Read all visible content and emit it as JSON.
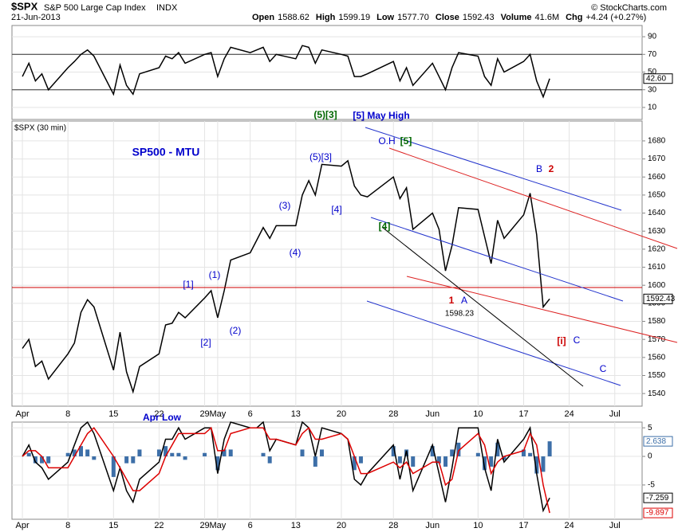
{
  "header": {
    "symbol": "$SPX",
    "name": "S&P 500 Large Cap Index",
    "exchange": "INDX",
    "date": "21-Jun-2013",
    "quote": [
      {
        "label": "Open",
        "value": "1588.62"
      },
      {
        "label": "High",
        "value": "1599.19"
      },
      {
        "label": "Low",
        "value": "1577.70"
      },
      {
        "label": "Close",
        "value": "1592.43"
      },
      {
        "label": "Volume",
        "value": "41.6M"
      },
      {
        "label": "Chg",
        "value": "+4.24 (+0.27%)"
      }
    ],
    "credit": "© StockCharts.com"
  },
  "chart_data": [
    {
      "type": "line",
      "x": [
        0,
        1,
        2,
        3,
        4,
        7,
        8,
        9,
        10,
        11,
        14,
        15,
        16,
        17,
        18,
        21,
        22,
        23,
        24,
        25,
        28,
        29,
        30,
        31,
        32,
        35,
        36,
        37,
        38,
        39,
        42,
        43,
        44,
        45,
        46,
        49,
        50,
        51,
        52,
        53,
        57,
        58,
        59,
        60,
        63,
        64,
        65,
        66,
        67,
        70,
        71,
        72,
        73,
        74,
        77,
        78,
        79,
        80,
        81
      ],
      "xlim": [
        -1.6,
        95.2
      ],
      "ylim": [
        -3.6,
        102.7
      ],
      "yticks": [
        10,
        30,
        50,
        70,
        90
      ],
      "levels": [
        30,
        70
      ],
      "grid": true,
      "series": [
        {
          "color": "#000000",
          "end_label": "42.60",
          "values": [
            45,
            60,
            40,
            48,
            30,
            55,
            62,
            70,
            75,
            68,
            25,
            58,
            35,
            25,
            48,
            55,
            68,
            65,
            72,
            60,
            70,
            72,
            45,
            65,
            78,
            72,
            75,
            78,
            62,
            70,
            65,
            80,
            78,
            60,
            75,
            70,
            68,
            45,
            45,
            48,
            62,
            40,
            55,
            35,
            60,
            45,
            30,
            55,
            72,
            68,
            45,
            35,
            65,
            50,
            62,
            70,
            40,
            22,
            42.6
          ]
        }
      ]
    },
    {
      "type": "line",
      "label": "$SPX (30 min)",
      "x": [
        0,
        1,
        2,
        3,
        4,
        7,
        8,
        9,
        10,
        11,
        14,
        15,
        16,
        17,
        18,
        21,
        22,
        23,
        24,
        25,
        28,
        29,
        30,
        31,
        32,
        35,
        36,
        37,
        38,
        39,
        42,
        43,
        44,
        45,
        46,
        49,
        50,
        51,
        52,
        53,
        57,
        58,
        59,
        60,
        63,
        64,
        65,
        66,
        67,
        70,
        71,
        72,
        73,
        74,
        77,
        78,
        79,
        80,
        81
      ],
      "xlim": [
        -1.6,
        95.2
      ],
      "ylim": [
        1533,
        1691
      ],
      "yticks": [
        1540,
        1550,
        1560,
        1570,
        1580,
        1590,
        1600,
        1610,
        1620,
        1630,
        1640,
        1650,
        1660,
        1670,
        1680
      ],
      "xticks": [
        {
          "value": 0,
          "label": "Apr"
        },
        {
          "value": 7,
          "label": "8"
        },
        {
          "value": 14,
          "label": "15"
        },
        {
          "value": 21,
          "label": "22"
        },
        {
          "value": 28,
          "label": "29"
        },
        {
          "value": 30,
          "label": "May"
        },
        {
          "value": 35,
          "label": "6"
        },
        {
          "value": 42,
          "label": "13"
        },
        {
          "value": 49,
          "label": "20"
        },
        {
          "value": 57,
          "label": "28"
        },
        {
          "value": 63,
          "label": "Jun"
        },
        {
          "value": 70,
          "label": "10"
        },
        {
          "value": 77,
          "label": "17"
        },
        {
          "value": 84,
          "label": "24"
        },
        {
          "value": 91,
          "label": "Jul"
        }
      ],
      "grid": true,
      "series": [
        {
          "color": "#000000",
          "end_label": "1592.43",
          "values": [
            1565,
            1570,
            1555,
            1558,
            1548,
            1562,
            1568,
            1585,
            1592,
            1588,
            1553,
            1574,
            1552,
            1541,
            1555,
            1562,
            1578,
            1579,
            1585,
            1582,
            1593,
            1597,
            1582,
            1597,
            1614,
            1618,
            1625,
            1632,
            1626,
            1633,
            1633,
            1650,
            1658,
            1650,
            1667,
            1666,
            1669,
            1655,
            1650,
            1649,
            1660,
            1648,
            1654,
            1631,
            1640,
            1631,
            1608,
            1622,
            1643,
            1642,
            1627,
            1612,
            1636,
            1626,
            1639,
            1651,
            1628,
            1588,
            1592.43
          ]
        }
      ],
      "annotations": [
        {
          "text": "SP500 - MTU",
          "color": "#0000cc"
        },
        {
          "text": "(5)[3]",
          "color": "#006600"
        },
        {
          "text": "[5] May High",
          "color": "#0000cc"
        },
        {
          "text": "O.H",
          "color": "#0000cc"
        },
        {
          "text": "[5]",
          "color": "#006600"
        },
        {
          "text": "(5)[3]",
          "color": "#0000cc"
        },
        {
          "text": "(3)",
          "color": "#0000cc"
        },
        {
          "text": "[4]",
          "color": "#0000cc"
        },
        {
          "text": "[4]",
          "color": "#006600"
        },
        {
          "text": "(4)",
          "color": "#0000cc"
        },
        {
          "text": "[1]",
          "color": "#0000cc"
        },
        {
          "text": "(1)",
          "color": "#0000cc"
        },
        {
          "text": "[2]",
          "color": "#0000cc"
        },
        {
          "text": "(2)",
          "color": "#0000cc"
        },
        {
          "text": "B",
          "color": "#0000cc"
        },
        {
          "text": "2",
          "color": "#cc0000"
        },
        {
          "text": "1",
          "color": "#cc0000"
        },
        {
          "text": "A",
          "color": "#0000cc"
        },
        {
          "text": "1598.23",
          "color": "#000000"
        },
        {
          "text": "[i]",
          "color": "#cc0000"
        },
        {
          "text": "C",
          "color": "#0000cc"
        },
        {
          "text": "C",
          "color": "#0000cc"
        },
        {
          "text": "Apr Low",
          "color": "#0000cc"
        }
      ]
    },
    {
      "type": "line",
      "x": [
        0,
        1,
        2,
        3,
        4,
        7,
        8,
        9,
        10,
        11,
        14,
        15,
        16,
        17,
        18,
        21,
        22,
        23,
        24,
        25,
        28,
        29,
        30,
        31,
        32,
        35,
        36,
        37,
        38,
        39,
        42,
        43,
        44,
        45,
        46,
        49,
        50,
        51,
        52,
        53,
        57,
        58,
        59,
        60,
        63,
        64,
        65,
        66,
        67,
        70,
        71,
        72,
        73,
        74,
        77,
        78,
        79,
        80,
        81
      ],
      "xlim": [
        -1.6,
        95.2
      ],
      "ylim": [
        -11,
        6
      ],
      "yticks": [
        -5,
        0,
        5
      ],
      "xticks": [
        {
          "value": 0,
          "label": "Apr"
        },
        {
          "value": 7,
          "label": "8"
        },
        {
          "value": 14,
          "label": "15"
        },
        {
          "value": 21,
          "label": "22"
        },
        {
          "value": 28,
          "label": "29"
        },
        {
          "value": 30,
          "label": "May"
        },
        {
          "value": 35,
          "label": "6"
        },
        {
          "value": 42,
          "label": "13"
        },
        {
          "value": 49,
          "label": "20"
        },
        {
          "value": 57,
          "label": "28"
        },
        {
          "value": 63,
          "label": "Jun"
        },
        {
          "value": 70,
          "label": "10"
        },
        {
          "value": 77,
          "label": "17"
        },
        {
          "value": 84,
          "label": "24"
        },
        {
          "value": 91,
          "label": "Jul"
        }
      ],
      "grid": true,
      "series": [
        {
          "type": "bar",
          "color": "#3d6fa8",
          "end_label": "2.638",
          "values": [
            0,
            0.6,
            -1.2,
            -1.2,
            -1.2,
            0.6,
            1.2,
            1.8,
            1.2,
            -0.6,
            -3.6,
            0,
            -1.2,
            -1.2,
            1.2,
            1.2,
            1.8,
            0.6,
            0.6,
            -0.6,
            0.6,
            0,
            -2.4,
            1.2,
            1.2,
            0,
            0,
            0.6,
            -1.2,
            0,
            0,
            1.2,
            0,
            -1.8,
            1.2,
            0,
            0,
            -2.4,
            -1.2,
            0,
            1.8,
            -1.2,
            1.2,
            -1.8,
            1.8,
            -1.2,
            -1.8,
            1.2,
            2.4,
            0.6,
            -2.4,
            -1.8,
            2.4,
            -0.6,
            1.2,
            0.6,
            -3,
            -2.7,
            2.638
          ]
        },
        {
          "type": "line",
          "color": "#000000",
          "end_label": "-7.259",
          "values": [
            0,
            2,
            -1,
            -2,
            -4,
            -1,
            2,
            5,
            6,
            4,
            -6,
            -2,
            -6,
            -8,
            -4,
            -1,
            3,
            3,
            5,
            3,
            5,
            5,
            -3,
            3,
            6,
            5,
            5,
            6,
            1,
            3,
            2,
            6,
            5,
            0,
            5,
            4,
            3,
            -4,
            -5,
            -3,
            2,
            -4,
            1,
            -6,
            2,
            -3,
            -8,
            -2,
            5,
            5,
            -2,
            -6,
            3,
            -1,
            3,
            5,
            -3,
            -9.5,
            -7.259
          ]
        },
        {
          "type": "line",
          "color": "#dd0000",
          "end_label": "-9.897",
          "values": [
            0,
            1,
            1,
            0,
            -2,
            -2,
            0,
            2,
            4,
            5,
            0,
            -2,
            -4,
            -6,
            -6,
            -3,
            0,
            2,
            4,
            4,
            4,
            5,
            1,
            1,
            4,
            5,
            5,
            5,
            3,
            3,
            2,
            4,
            5,
            3,
            3,
            4,
            3,
            0,
            -3,
            -3,
            -1,
            -2,
            -1,
            -3,
            -1,
            -1,
            -5,
            -4,
            1,
            4,
            2,
            -3,
            -1,
            0,
            1,
            4,
            2,
            -5,
            -9.897
          ]
        }
      ]
    }
  ]
}
